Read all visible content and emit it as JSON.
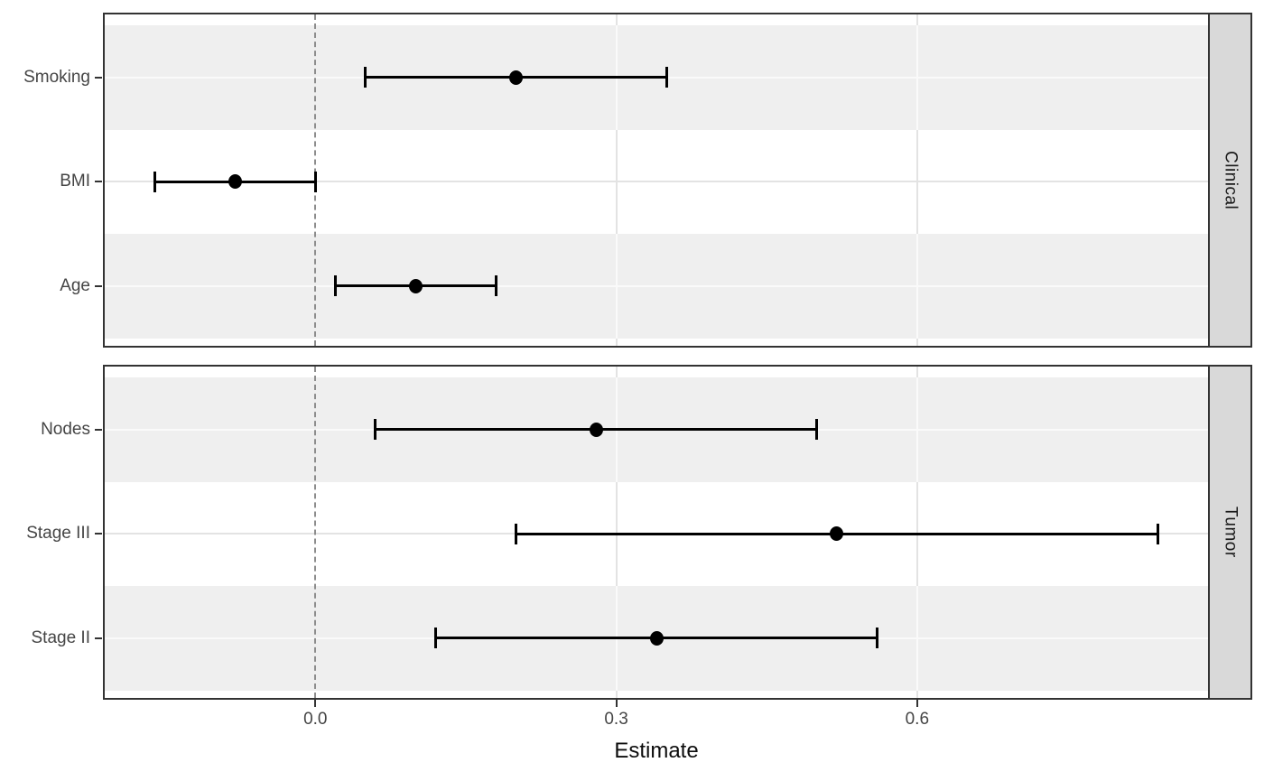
{
  "figure": {
    "background": "#ffffff"
  },
  "chart_data": {
    "type": "scatter",
    "subtype": "faceted-forest-plot-point-estimates-with-error-bars",
    "title": "",
    "xlabel": "Estimate",
    "ylabel": "",
    "x_axis": {
      "title": "Estimate",
      "xlim": [
        -0.21,
        0.89
      ],
      "ticks": [
        {
          "value": 0.0,
          "label": "0.0"
        },
        {
          "value": 0.3,
          "label": "0.3"
        },
        {
          "value": 0.6,
          "label": "0.6"
        }
      ]
    },
    "reference_line": {
      "value": 0.0,
      "style": "dashed"
    },
    "grid": {
      "vertical_major": [
        0.3,
        0.6
      ],
      "horizontal_per_row": true,
      "legend": "none"
    },
    "facets": [
      {
        "label": "Clinical",
        "rows": [
          {
            "label": "Smoking",
            "estimate": 0.2,
            "ci_lower": 0.05,
            "ci_upper": 0.35,
            "striped": true
          },
          {
            "label": "BMI",
            "estimate": -0.08,
            "ci_lower": -0.16,
            "ci_upper": 0.0,
            "striped": false
          },
          {
            "label": "Age",
            "estimate": 0.1,
            "ci_lower": 0.02,
            "ci_upper": 0.18,
            "striped": true
          }
        ]
      },
      {
        "label": "Tumor",
        "rows": [
          {
            "label": "Nodes",
            "estimate": 0.28,
            "ci_lower": 0.06,
            "ci_upper": 0.5,
            "striped": true
          },
          {
            "label": "Stage III",
            "estimate": 0.52,
            "ci_lower": 0.2,
            "ci_upper": 0.84,
            "striped": false
          },
          {
            "label": "Stage II",
            "estimate": 0.34,
            "ci_lower": 0.12,
            "ci_upper": 0.56,
            "striped": true
          }
        ]
      }
    ],
    "colors": {
      "point": "#000000",
      "errorbar": "#000000",
      "stripe_background": "#efefef",
      "panel_border": "#333333",
      "facet_strip_background": "#d9d9d9",
      "gridline": "#e3e3e3",
      "gridline_on_stripe": "#fafafa",
      "axis_text": "#454545",
      "axis_title_text": "#0d0d0d",
      "reference_line": "#8c8c8c"
    }
  }
}
